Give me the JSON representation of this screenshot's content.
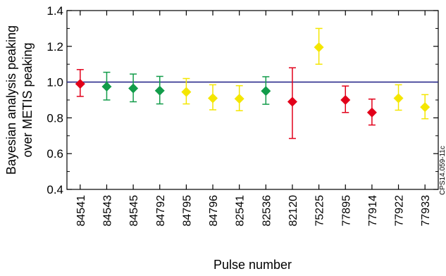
{
  "chart_data": {
    "type": "scatter",
    "title": "",
    "xlabel": "Pulse number",
    "ylabel_lines": [
      "Bayesian analysis peaking",
      "over METIS peaking"
    ],
    "ylim": [
      0.4,
      1.4
    ],
    "yticks": [
      "0.4",
      "0.6",
      "0.8",
      "1.0",
      "1.2",
      "1.4"
    ],
    "yticks_values": [
      0.4,
      0.6,
      0.8,
      1.0,
      1.2,
      1.4
    ],
    "reference_line": {
      "y": 1.0,
      "color": "#2b2b8c"
    },
    "grid": false,
    "annotation": "CPS14.059-11c",
    "points": [
      {
        "category": "84541",
        "y": 0.99,
        "lo": 0.92,
        "hi": 1.07,
        "color": "#e2001a"
      },
      {
        "category": "84543",
        "y": 0.975,
        "lo": 0.9,
        "hi": 1.055,
        "color": "#129c4a"
      },
      {
        "category": "84545",
        "y": 0.965,
        "lo": 0.89,
        "hi": 1.045,
        "color": "#129c4a"
      },
      {
        "category": "84792",
        "y": 0.952,
        "lo": 0.878,
        "hi": 1.032,
        "color": "#129c4a"
      },
      {
        "category": "84795",
        "y": 0.945,
        "lo": 0.878,
        "hi": 1.02,
        "color": "#f4e600"
      },
      {
        "category": "84796",
        "y": 0.91,
        "lo": 0.845,
        "hi": 0.985,
        "color": "#f4e600"
      },
      {
        "category": "82541",
        "y": 0.907,
        "lo": 0.84,
        "hi": 0.98,
        "color": "#f4e600"
      },
      {
        "category": "82536",
        "y": 0.95,
        "lo": 0.876,
        "hi": 1.03,
        "color": "#129c4a"
      },
      {
        "category": "82120",
        "y": 0.89,
        "lo": 0.685,
        "hi": 1.08,
        "color": "#e2001a"
      },
      {
        "category": "75225",
        "y": 1.195,
        "lo": 1.1,
        "hi": 1.3,
        "color": "#f4e600"
      },
      {
        "category": "77895",
        "y": 0.9,
        "lo": 0.83,
        "hi": 0.978,
        "color": "#e2001a"
      },
      {
        "category": "77914",
        "y": 0.83,
        "lo": 0.76,
        "hi": 0.905,
        "color": "#e2001a"
      },
      {
        "category": "77922",
        "y": 0.91,
        "lo": 0.843,
        "hi": 0.985,
        "color": "#f4e600"
      },
      {
        "category": "77933",
        "y": 0.86,
        "lo": 0.795,
        "hi": 0.93,
        "color": "#f4e600"
      }
    ]
  }
}
